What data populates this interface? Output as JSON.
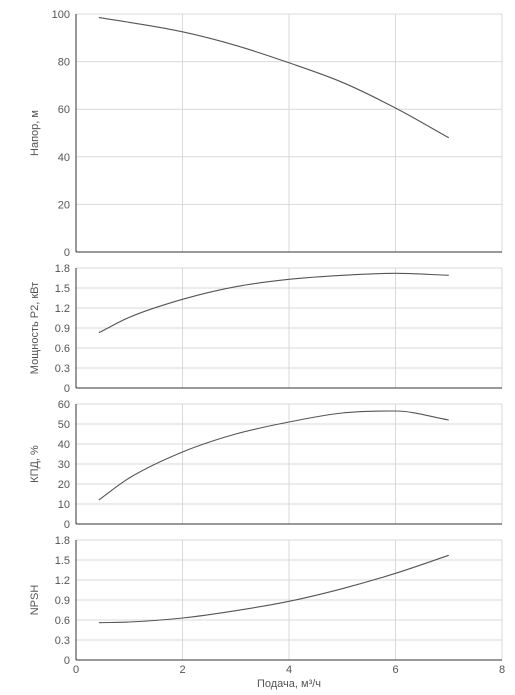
{
  "chart_data": [
    {
      "type": "line",
      "ylabel": "Напор, м",
      "xlim": [
        0,
        8
      ],
      "ylim": [
        0,
        100
      ],
      "yticks": [
        "0",
        "20",
        "40",
        "60",
        "80",
        "100"
      ],
      "grid": true,
      "series": [
        {
          "x": [
            0.43,
            1,
            2,
            3,
            4,
            5,
            6,
            7
          ],
          "y": [
            98.5,
            96.5,
            92.5,
            86.8,
            79.5,
            71.3,
            60.5,
            48
          ]
        }
      ]
    },
    {
      "type": "line",
      "ylabel": "Мощность P2, кВт",
      "xlim": [
        0,
        8
      ],
      "ylim": [
        0,
        1.8
      ],
      "yticks": [
        "0",
        "0.3",
        "0.6",
        "0.9",
        "1.2",
        "1.5",
        "1.8"
      ],
      "grid": true,
      "series": [
        {
          "x": [
            0.43,
            1,
            2,
            3,
            4,
            5,
            6,
            7
          ],
          "y": [
            0.83,
            1.06,
            1.33,
            1.52,
            1.63,
            1.69,
            1.72,
            1.69
          ]
        }
      ]
    },
    {
      "type": "line",
      "ylabel": "КПД, %",
      "xlim": [
        0,
        8
      ],
      "ylim": [
        0,
        60
      ],
      "yticks": [
        "0",
        "10",
        "20",
        "30",
        "40",
        "50",
        "60"
      ],
      "grid": true,
      "series": [
        {
          "x": [
            0.43,
            1,
            2,
            3,
            4,
            5,
            6,
            7
          ],
          "y": [
            12,
            23,
            36,
            45,
            51,
            55.5,
            56.5,
            52
          ]
        }
      ]
    },
    {
      "type": "line",
      "ylabel": "NPSH",
      "xlabel": "Подача, м³/ч",
      "xlim": [
        0,
        8
      ],
      "ylim": [
        0,
        1.8
      ],
      "xticks": [
        "0",
        "2",
        "4",
        "6",
        "8"
      ],
      "yticks": [
        "0",
        "0.3",
        "0.6",
        "0.9",
        "1.2",
        "1.5",
        "1.8"
      ],
      "grid": true,
      "series": [
        {
          "x": [
            0.43,
            1,
            2,
            3,
            4,
            5,
            6,
            7
          ],
          "y": [
            0.56,
            0.57,
            0.63,
            0.74,
            0.88,
            1.07,
            1.3,
            1.57
          ]
        }
      ]
    }
  ],
  "colors": {
    "curve": "#555555",
    "grid": "#d9d9d9",
    "axis": "#333333",
    "text": "#555555"
  }
}
